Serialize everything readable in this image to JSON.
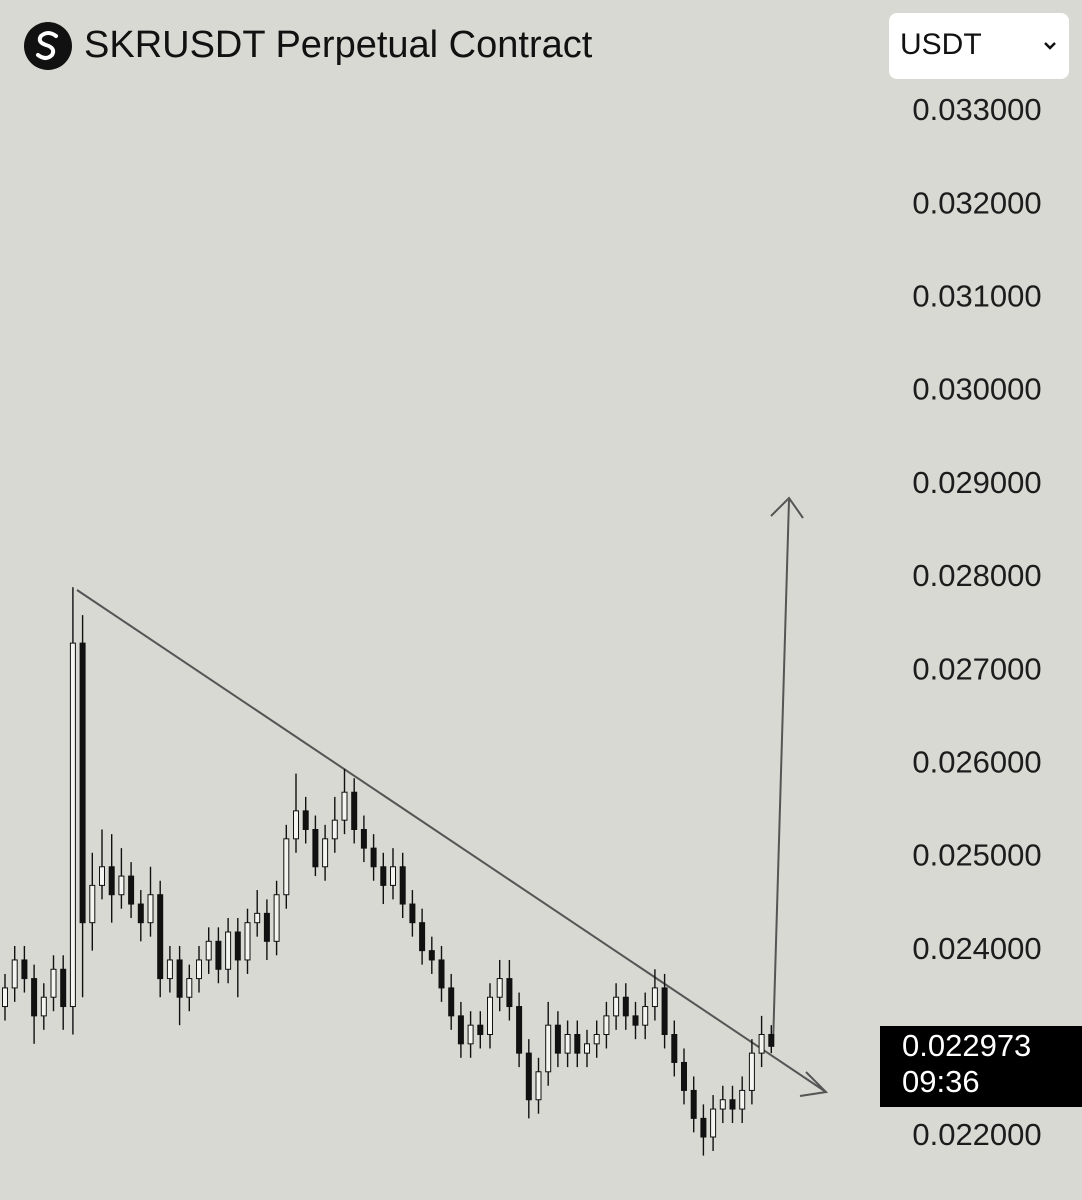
{
  "chart_data": {
    "type": "candlestick",
    "title": "SKRUSDT Perpetual Contract",
    "currency": "USDT",
    "ylim": [
      0.021324,
      0.033343
    ],
    "yticks": [
      {
        "value": 0.022,
        "label": "0.022000"
      },
      {
        "value": 0.023,
        "label": "0.023000"
      },
      {
        "value": 0.024,
        "label": "0.024000"
      },
      {
        "value": 0.025,
        "label": "0.025000"
      },
      {
        "value": 0.026,
        "label": "0.026000"
      },
      {
        "value": 0.027,
        "label": "0.027000"
      },
      {
        "value": 0.028,
        "label": "0.028000"
      },
      {
        "value": 0.029,
        "label": "0.029000"
      },
      {
        "value": 0.03,
        "label": "0.030000"
      },
      {
        "value": 0.031,
        "label": "0.031000"
      },
      {
        "value": 0.032,
        "label": "0.032000"
      },
      {
        "value": 0.033,
        "label": "0.033000"
      }
    ],
    "last_price": 0.022973,
    "countdown": "09:36",
    "up_color": "#f4f4f0",
    "down_color": "#111111",
    "candles": [
      [
        0.0234,
        0.02375,
        0.02325,
        0.0236
      ],
      [
        0.0236,
        0.02405,
        0.02345,
        0.0239
      ],
      [
        0.0239,
        0.02405,
        0.02355,
        0.0237
      ],
      [
        0.0237,
        0.02385,
        0.023,
        0.0233
      ],
      [
        0.0233,
        0.02365,
        0.02315,
        0.0235
      ],
      [
        0.0235,
        0.02395,
        0.02335,
        0.0238
      ],
      [
        0.0238,
        0.02395,
        0.02315,
        0.0234
      ],
      [
        0.0234,
        0.0279,
        0.0231,
        0.0273
      ],
      [
        0.0273,
        0.0276,
        0.0235,
        0.0243
      ],
      [
        0.0243,
        0.02505,
        0.024,
        0.0247
      ],
      [
        0.0247,
        0.0253,
        0.02455,
        0.0249
      ],
      [
        0.0249,
        0.02525,
        0.0243,
        0.0246
      ],
      [
        0.0246,
        0.0251,
        0.02445,
        0.0248
      ],
      [
        0.0248,
        0.02495,
        0.02435,
        0.0245
      ],
      [
        0.0245,
        0.02465,
        0.0241,
        0.0243
      ],
      [
        0.0243,
        0.0249,
        0.02415,
        0.0246
      ],
      [
        0.0246,
        0.02475,
        0.0235,
        0.0237
      ],
      [
        0.0237,
        0.02405,
        0.02355,
        0.0239
      ],
      [
        0.0239,
        0.02405,
        0.0232,
        0.0235
      ],
      [
        0.0235,
        0.02385,
        0.02335,
        0.0237
      ],
      [
        0.0237,
        0.02405,
        0.02355,
        0.0239
      ],
      [
        0.0239,
        0.02425,
        0.02375,
        0.0241
      ],
      [
        0.0241,
        0.02425,
        0.02365,
        0.0238
      ],
      [
        0.0238,
        0.02435,
        0.02365,
        0.0242
      ],
      [
        0.0242,
        0.02435,
        0.0235,
        0.0239
      ],
      [
        0.0239,
        0.02445,
        0.02375,
        0.0243
      ],
      [
        0.0243,
        0.02465,
        0.02415,
        0.0244
      ],
      [
        0.0244,
        0.02455,
        0.0239,
        0.0241
      ],
      [
        0.0241,
        0.02475,
        0.02395,
        0.0246
      ],
      [
        0.0246,
        0.02535,
        0.02445,
        0.0252
      ],
      [
        0.0252,
        0.0259,
        0.02505,
        0.0255
      ],
      [
        0.0255,
        0.02565,
        0.02515,
        0.0253
      ],
      [
        0.0253,
        0.02545,
        0.0248,
        0.0249
      ],
      [
        0.0249,
        0.02535,
        0.02475,
        0.0252
      ],
      [
        0.0252,
        0.02565,
        0.02505,
        0.0254
      ],
      [
        0.0254,
        0.02595,
        0.02525,
        0.0257
      ],
      [
        0.0257,
        0.02585,
        0.02515,
        0.0253
      ],
      [
        0.0253,
        0.02545,
        0.02495,
        0.0251
      ],
      [
        0.0251,
        0.02525,
        0.02475,
        0.0249
      ],
      [
        0.0249,
        0.02505,
        0.0245,
        0.0247
      ],
      [
        0.0247,
        0.0251,
        0.02455,
        0.0249
      ],
      [
        0.0249,
        0.02505,
        0.02435,
        0.0245
      ],
      [
        0.0245,
        0.02465,
        0.02415,
        0.0243
      ],
      [
        0.0243,
        0.02445,
        0.02385,
        0.024
      ],
      [
        0.024,
        0.02415,
        0.02375,
        0.0239
      ],
      [
        0.0239,
        0.02405,
        0.02345,
        0.0236
      ],
      [
        0.0236,
        0.02375,
        0.02315,
        0.0233
      ],
      [
        0.0233,
        0.02345,
        0.02285,
        0.023
      ],
      [
        0.023,
        0.02335,
        0.02285,
        0.0232
      ],
      [
        0.0232,
        0.02335,
        0.02295,
        0.0231
      ],
      [
        0.0231,
        0.02365,
        0.02295,
        0.0235
      ],
      [
        0.0235,
        0.0239,
        0.02335,
        0.0237
      ],
      [
        0.0237,
        0.0239,
        0.02325,
        0.0234
      ],
      [
        0.0234,
        0.02355,
        0.02275,
        0.0229
      ],
      [
        0.0229,
        0.02305,
        0.0222,
        0.0224
      ],
      [
        0.0224,
        0.02285,
        0.02225,
        0.0227
      ],
      [
        0.0227,
        0.02345,
        0.02255,
        0.0232
      ],
      [
        0.0232,
        0.02335,
        0.02275,
        0.0229
      ],
      [
        0.0229,
        0.02325,
        0.02275,
        0.0231
      ],
      [
        0.0231,
        0.02325,
        0.02275,
        0.0229
      ],
      [
        0.0229,
        0.02315,
        0.02275,
        0.023
      ],
      [
        0.023,
        0.02325,
        0.02285,
        0.0231
      ],
      [
        0.0231,
        0.02345,
        0.02295,
        0.0233
      ],
      [
        0.0233,
        0.02365,
        0.02315,
        0.0235
      ],
      [
        0.0235,
        0.02365,
        0.02315,
        0.0233
      ],
      [
        0.0233,
        0.02345,
        0.02305,
        0.0232
      ],
      [
        0.0232,
        0.02355,
        0.02305,
        0.0234
      ],
      [
        0.0234,
        0.0238,
        0.02325,
        0.0236
      ],
      [
        0.0236,
        0.02375,
        0.02295,
        0.0231
      ],
      [
        0.0231,
        0.02325,
        0.02265,
        0.0228
      ],
      [
        0.0228,
        0.02295,
        0.02235,
        0.0225
      ],
      [
        0.0225,
        0.02265,
        0.02205,
        0.0222
      ],
      [
        0.0222,
        0.02235,
        0.0218,
        0.022
      ],
      [
        0.022,
        0.02245,
        0.02185,
        0.0223
      ],
      [
        0.0223,
        0.02255,
        0.02215,
        0.0224
      ],
      [
        0.0224,
        0.02255,
        0.02215,
        0.0223
      ],
      [
        0.0223,
        0.02265,
        0.02215,
        0.0225
      ],
      [
        0.0225,
        0.02305,
        0.02235,
        0.0229
      ],
      [
        0.0229,
        0.0233,
        0.02275,
        0.0231
      ],
      [
        0.0231,
        0.0232,
        0.0229,
        0.022973
      ]
    ]
  }
}
